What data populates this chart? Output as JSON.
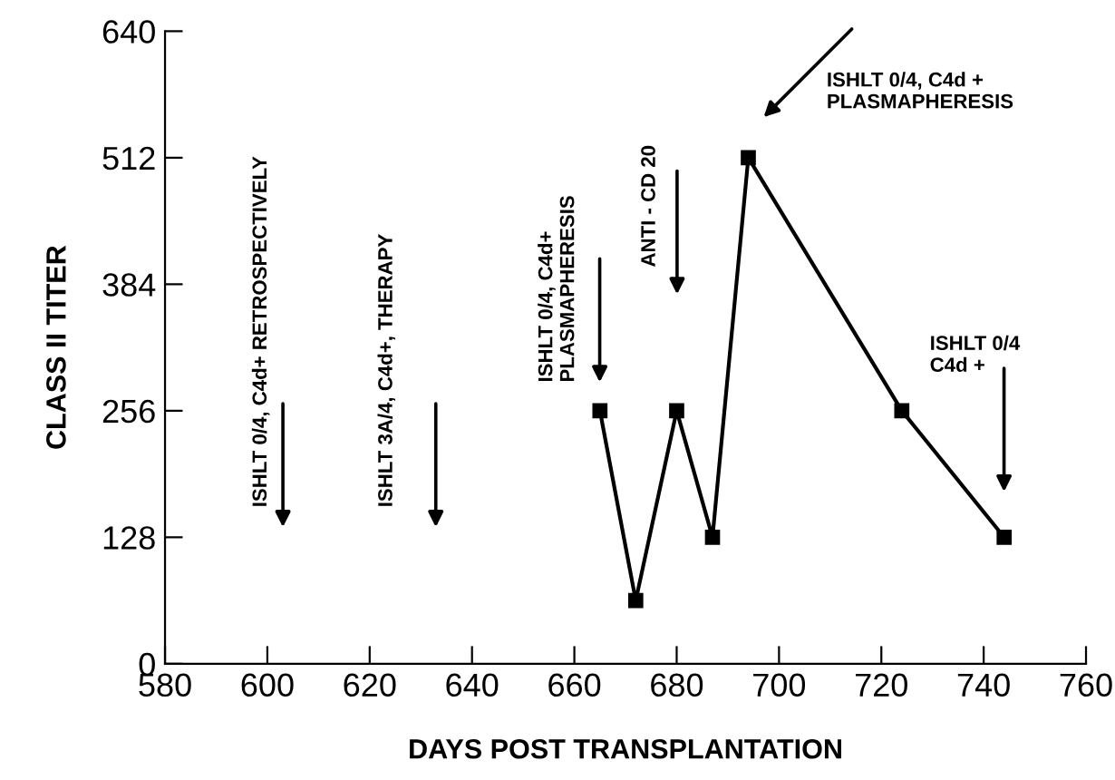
{
  "chart_data": {
    "type": "line",
    "xlabel": "DAYS POST TRANSPLANTATION",
    "ylabel": "CLASS II TITER",
    "x": [
      665,
      672,
      680,
      687,
      694,
      724,
      744
    ],
    "series": [
      {
        "color": "#000000",
        "values": [
          256,
          64,
          256,
          128,
          512,
          256,
          128
        ]
      }
    ],
    "marker": "square",
    "line_style": "solid",
    "grid": false,
    "legend": false,
    "xlim": [
      580,
      760
    ],
    "xticks": [
      580,
      600,
      620,
      640,
      660,
      680,
      700,
      720,
      740,
      760
    ],
    "ylim": [
      0,
      640
    ],
    "yticks": [
      0,
      128,
      256,
      384,
      512,
      640
    ],
    "annotations": [
      "ISHLT 0/4, C4d+ RETROSPECTIVELY",
      "ISHLT 3A/4, C4d+, THERAPY",
      "ISHLT 0/4, C4d+\nPLASMAPHERESIS",
      "ANTI - CD 20",
      "ISHLT 0/4, C4d +\nPLASMAPHERESIS",
      "ISHLT 0/4\nC4d +"
    ]
  }
}
